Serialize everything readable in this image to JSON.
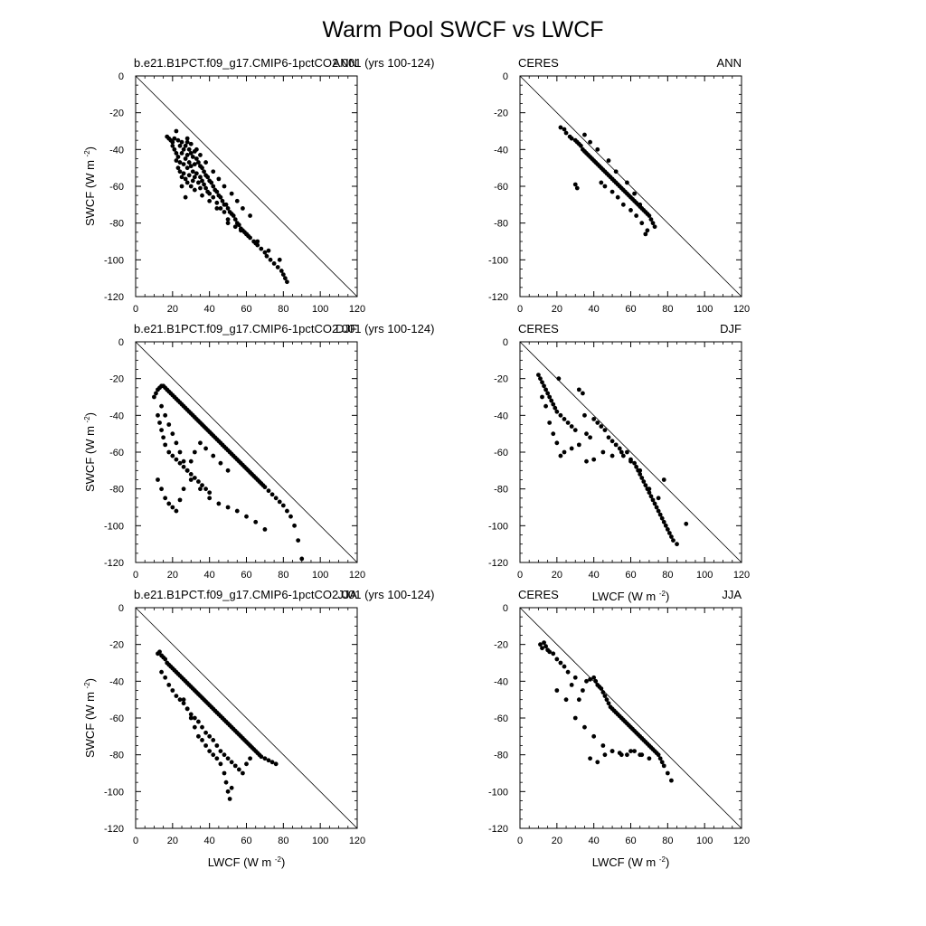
{
  "figure": {
    "title": "Warm Pool SWCF vs LWCF"
  },
  "chart_data": [
    {
      "type": "scatter",
      "left_label": "b.e21.B1PCT.f09_g17.CMIP6-1pctCO2.001 (yrs 100-124)",
      "right_label": "ANN",
      "xlabel": "",
      "ylabel": "SWCF (W m-2)",
      "xlim": [
        0,
        120
      ],
      "ylim": [
        -120,
        0
      ],
      "xticks": [
        0,
        20,
        40,
        60,
        80,
        100,
        120
      ],
      "yticks": [
        0,
        -20,
        -40,
        -60,
        -80,
        -100,
        -120
      ],
      "reference_line": [
        [
          0,
          0
        ],
        [
          120,
          -120
        ]
      ],
      "point_color": "#000000",
      "x": [
        17,
        18,
        19,
        20,
        20,
        21,
        21,
        22,
        22,
        22,
        23,
        23,
        23,
        24,
        24,
        24,
        25,
        25,
        25,
        26,
        26,
        26,
        27,
        27,
        27,
        28,
        28,
        28,
        28,
        29,
        29,
        29,
        30,
        30,
        30,
        31,
        31,
        31,
        32,
        32,
        32,
        33,
        33,
        34,
        34,
        35,
        35,
        35,
        36,
        36,
        37,
        37,
        38,
        38,
        39,
        39,
        40,
        40,
        41,
        42,
        42,
        43,
        44,
        44,
        45,
        46,
        46,
        47,
        48,
        49,
        50,
        50,
        51,
        52,
        53,
        54,
        55,
        56,
        57,
        58,
        59,
        60,
        61,
        62,
        64,
        65,
        66,
        68,
        70,
        71,
        73,
        75,
        77,
        79,
        80,
        81,
        82,
        28,
        30,
        33,
        35,
        38,
        42,
        45,
        48,
        52,
        55,
        58,
        62,
        25,
        27,
        32,
        36,
        40,
        44,
        48,
        50,
        54,
        57,
        60,
        66,
        72,
        78
      ],
      "y": [
        -33,
        -34,
        -35,
        -36,
        -38,
        -34,
        -40,
        -30,
        -42,
        -46,
        -35,
        -44,
        -50,
        -38,
        -47,
        -52,
        -36,
        -42,
        -55,
        -40,
        -48,
        -53,
        -38,
        -45,
        -56,
        -36,
        -43,
        -50,
        -58,
        -40,
        -47,
        -54,
        -42,
        -49,
        -60,
        -44,
        -52,
        -57,
        -41,
        -48,
        -55,
        -45,
        -53,
        -47,
        -58,
        -49,
        -55,
        -61,
        -50,
        -57,
        -52,
        -59,
        -54,
        -61,
        -55,
        -63,
        -57,
        -64,
        -58,
        -60,
        -66,
        -62,
        -63,
        -69,
        -65,
        -66,
        -72,
        -68,
        -70,
        -70,
        -72,
        -78,
        -74,
        -75,
        -76,
        -78,
        -80,
        -81,
        -83,
        -84,
        -85,
        -86,
        -87,
        -88,
        -90,
        -91,
        -92,
        -94,
        -96,
        -98,
        -100,
        -102,
        -104,
        -106,
        -108,
        -110,
        -112,
        -34,
        -37,
        -40,
        -43,
        -47,
        -52,
        -56,
        -60,
        -64,
        -68,
        -72,
        -76,
        -60,
        -66,
        -62,
        -65,
        -68,
        -72,
        -74,
        -80,
        -82,
        -84,
        -86,
        -90,
        -95,
        -100
      ]
    },
    {
      "type": "scatter",
      "left_label": "CERES",
      "right_label": "ANN",
      "xlabel": "",
      "ylabel": "",
      "xlim": [
        0,
        120
      ],
      "ylim": [
        -120,
        0
      ],
      "xticks": [
        0,
        20,
        40,
        60,
        80,
        100,
        120
      ],
      "yticks": [
        0,
        -20,
        -40,
        -60,
        -80,
        -100,
        -120
      ],
      "reference_line": [
        [
          0,
          0
        ],
        [
          120,
          -120
        ]
      ],
      "point_color": "#000000",
      "x": [
        22,
        24,
        25,
        27,
        28,
        30,
        31,
        32,
        33,
        34,
        35,
        36,
        37,
        38,
        39,
        40,
        41,
        42,
        43,
        44,
        45,
        46,
        47,
        48,
        49,
        50,
        51,
        52,
        53,
        54,
        55,
        56,
        57,
        58,
        59,
        60,
        61,
        62,
        63,
        64,
        65,
        66,
        67,
        68,
        69,
        70,
        71,
        72,
        73,
        30,
        31,
        44,
        46,
        50,
        53,
        56,
        60,
        63,
        66,
        69,
        35,
        38,
        42,
        48,
        52,
        58,
        62,
        65,
        68
      ],
      "y": [
        -28,
        -29,
        -31,
        -33,
        -34,
        -35,
        -36,
        -37,
        -38,
        -40,
        -41,
        -42,
        -43,
        -44,
        -45,
        -46,
        -47,
        -48,
        -49,
        -50,
        -51,
        -52,
        -53,
        -54,
        -55,
        -56,
        -57,
        -58,
        -59,
        -60,
        -61,
        -62,
        -63,
        -64,
        -65,
        -66,
        -67,
        -68,
        -69,
        -70,
        -71,
        -72,
        -73,
        -74,
        -75,
        -76,
        -78,
        -80,
        -82,
        -59,
        -61,
        -58,
        -60,
        -63,
        -66,
        -70,
        -73,
        -76,
        -80,
        -84,
        -32,
        -36,
        -40,
        -46,
        -52,
        -58,
        -64,
        -70,
        -86
      ]
    },
    {
      "type": "scatter",
      "left_label": "b.e21.B1PCT.f09_g17.CMIP6-1pctCO2.001 (yrs 100-124)",
      "right_label": "DJF",
      "xlabel": "",
      "ylabel": "SWCF (W m-2)",
      "xlim": [
        0,
        120
      ],
      "ylim": [
        -120,
        0
      ],
      "xticks": [
        0,
        20,
        40,
        60,
        80,
        100,
        120
      ],
      "yticks": [
        0,
        -20,
        -40,
        -60,
        -80,
        -100,
        -120
      ],
      "reference_line": [
        [
          0,
          0
        ],
        [
          120,
          -120
        ]
      ],
      "point_color": "#000000",
      "x": [
        10,
        11,
        12,
        13,
        14,
        15,
        16,
        17,
        18,
        19,
        20,
        21,
        22,
        23,
        24,
        25,
        26,
        27,
        28,
        29,
        30,
        31,
        32,
        33,
        34,
        35,
        36,
        37,
        38,
        39,
        40,
        41,
        42,
        43,
        44,
        45,
        46,
        47,
        48,
        49,
        50,
        51,
        52,
        53,
        54,
        55,
        56,
        57,
        58,
        59,
        60,
        61,
        62,
        63,
        64,
        65,
        66,
        67,
        68,
        69,
        70,
        72,
        74,
        76,
        78,
        80,
        82,
        84,
        86,
        88,
        90,
        12,
        13,
        14,
        15,
        16,
        18,
        20,
        22,
        24,
        26,
        28,
        30,
        32,
        34,
        36,
        38,
        40,
        12,
        14,
        16,
        18,
        20,
        22,
        24,
        26,
        28,
        30,
        32,
        35,
        38,
        42,
        46,
        50,
        14,
        16,
        18,
        20,
        22,
        24,
        26,
        28,
        30,
        35,
        40,
        45,
        50,
        55,
        60,
        65,
        70
      ],
      "y": [
        -30,
        -28,
        -26,
        -25,
        -24,
        -24,
        -25,
        -26,
        -27,
        -28,
        -29,
        -30,
        -31,
        -32,
        -33,
        -34,
        -35,
        -36,
        -37,
        -38,
        -39,
        -40,
        -41,
        -42,
        -43,
        -44,
        -45,
        -46,
        -47,
        -48,
        -49,
        -50,
        -51,
        -52,
        -53,
        -54,
        -55,
        -56,
        -57,
        -58,
        -59,
        -60,
        -61,
        -62,
        -63,
        -64,
        -65,
        -66,
        -67,
        -68,
        -69,
        -70,
        -71,
        -72,
        -73,
        -74,
        -75,
        -76,
        -77,
        -78,
        -79,
        -81,
        -83,
        -85,
        -87,
        -89,
        -92,
        -95,
        -100,
        -108,
        -118,
        -40,
        -44,
        -48,
        -52,
        -56,
        -60,
        -62,
        -64,
        -66,
        -68,
        -70,
        -72,
        -74,
        -76,
        -78,
        -80,
        -82,
        -75,
        -80,
        -85,
        -88,
        -90,
        -92,
        -86,
        -80,
        -70,
        -65,
        -60,
        -55,
        -58,
        -62,
        -66,
        -70,
        -35,
        -40,
        -45,
        -50,
        -55,
        -60,
        -65,
        -70,
        -75,
        -80,
        -85,
        -88,
        -90,
        -92,
        -95,
        -98,
        -102
      ]
    },
    {
      "type": "scatter",
      "left_label": "CERES",
      "right_label": "DJF",
      "xlabel": "LWCF (W m-2)",
      "ylabel": "",
      "xlim": [
        0,
        120
      ],
      "ylim": [
        -120,
        0
      ],
      "xticks": [
        0,
        20,
        40,
        60,
        80,
        100,
        120
      ],
      "yticks": [
        0,
        -20,
        -40,
        -60,
        -80,
        -100,
        -120
      ],
      "reference_line": [
        [
          0,
          0
        ],
        [
          120,
          -120
        ]
      ],
      "point_color": "#000000",
      "x": [
        10,
        11,
        12,
        13,
        14,
        15,
        16,
        17,
        18,
        19,
        20,
        21,
        22,
        24,
        26,
        28,
        30,
        32,
        34,
        35,
        36,
        38,
        40,
        42,
        44,
        46,
        48,
        50,
        52,
        54,
        56,
        58,
        60,
        62,
        63,
        64,
        65,
        66,
        67,
        68,
        69,
        70,
        71,
        72,
        73,
        74,
        75,
        76,
        77,
        78,
        79,
        80,
        81,
        82,
        83,
        85,
        90,
        12,
        14,
        16,
        18,
        20,
        22,
        24,
        28,
        32,
        36,
        40,
        45,
        50,
        55,
        60,
        65,
        70,
        75,
        78
      ],
      "y": [
        -18,
        -20,
        -22,
        -24,
        -26,
        -28,
        -30,
        -32,
        -34,
        -36,
        -38,
        -20,
        -40,
        -42,
        -44,
        -46,
        -48,
        -26,
        -28,
        -40,
        -50,
        -52,
        -42,
        -44,
        -46,
        -48,
        -52,
        -54,
        -56,
        -58,
        -62,
        -60,
        -64,
        -66,
        -68,
        -70,
        -72,
        -74,
        -76,
        -78,
        -80,
        -82,
        -84,
        -86,
        -88,
        -90,
        -92,
        -94,
        -96,
        -98,
        -100,
        -102,
        -104,
        -106,
        -108,
        -110,
        -99,
        -30,
        -35,
        -44,
        -50,
        -55,
        -62,
        -60,
        -58,
        -56,
        -65,
        -64,
        -60,
        -62,
        -60,
        -65,
        -70,
        -80,
        -85,
        -75
      ]
    },
    {
      "type": "scatter",
      "left_label": "b.e21.B1PCT.f09_g17.CMIP6-1pctCO2.001 (yrs 100-124)",
      "right_label": "JJA",
      "xlabel": "LWCF (W m-2)",
      "ylabel": "SWCF (W m-2)",
      "xlim": [
        0,
        120
      ],
      "ylim": [
        -120,
        0
      ],
      "xticks": [
        0,
        20,
        40,
        60,
        80,
        100,
        120
      ],
      "yticks": [
        0,
        -20,
        -40,
        -60,
        -80,
        -100,
        -120
      ],
      "reference_line": [
        [
          0,
          0
        ],
        [
          120,
          -120
        ]
      ],
      "point_color": "#000000",
      "x": [
        12,
        13,
        14,
        15,
        16,
        17,
        18,
        19,
        20,
        21,
        22,
        23,
        24,
        25,
        26,
        27,
        28,
        29,
        30,
        31,
        32,
        33,
        34,
        35,
        36,
        37,
        38,
        39,
        40,
        41,
        42,
        43,
        44,
        45,
        46,
        47,
        48,
        49,
        50,
        51,
        52,
        53,
        54,
        55,
        56,
        57,
        58,
        59,
        60,
        61,
        62,
        63,
        64,
        65,
        66,
        67,
        68,
        70,
        72,
        74,
        76,
        14,
        16,
        18,
        20,
        22,
        24,
        26,
        28,
        30,
        32,
        34,
        36,
        38,
        40,
        42,
        44,
        46,
        48,
        50,
        52,
        54,
        56,
        58,
        60,
        62,
        26,
        28,
        30,
        32,
        34,
        36,
        38,
        40,
        42,
        44,
        46,
        48,
        49,
        50,
        51,
        52
      ],
      "y": [
        -25,
        -24,
        -26,
        -27,
        -28,
        -30,
        -31,
        -32,
        -33,
        -34,
        -35,
        -36,
        -37,
        -38,
        -39,
        -40,
        -41,
        -42,
        -43,
        -44,
        -45,
        -46,
        -47,
        -48,
        -49,
        -50,
        -51,
        -52,
        -53,
        -54,
        -55,
        -56,
        -57,
        -58,
        -59,
        -60,
        -61,
        -62,
        -63,
        -64,
        -65,
        -66,
        -67,
        -68,
        -69,
        -70,
        -71,
        -72,
        -73,
        -74,
        -75,
        -76,
        -77,
        -78,
        -79,
        -80,
        -81,
        -82,
        -83,
        -84,
        -85,
        -35,
        -38,
        -42,
        -45,
        -48,
        -50,
        -52,
        -55,
        -58,
        -60,
        -62,
        -65,
        -68,
        -70,
        -72,
        -75,
        -78,
        -80,
        -82,
        -84,
        -86,
        -88,
        -90,
        -85,
        -82,
        -50,
        -55,
        -60,
        -65,
        -70,
        -72,
        -75,
        -78,
        -80,
        -82,
        -85,
        -90,
        -95,
        -100,
        -104,
        -98
      ]
    },
    {
      "type": "scatter",
      "left_label": "CERES",
      "right_label": "JJA",
      "xlabel": "LWCF (W m-2)",
      "ylabel": "",
      "xlim": [
        0,
        120
      ],
      "ylim": [
        -120,
        0
      ],
      "xticks": [
        0,
        20,
        40,
        60,
        80,
        100,
        120
      ],
      "yticks": [
        0,
        -20,
        -40,
        -60,
        -80,
        -100,
        -120
      ],
      "reference_line": [
        [
          0,
          0
        ],
        [
          120,
          -120
        ]
      ],
      "point_color": "#000000",
      "x": [
        11,
        12,
        13,
        14,
        15,
        16,
        18,
        20,
        22,
        24,
        26,
        28,
        30,
        32,
        34,
        36,
        38,
        40,
        41,
        42,
        43,
        44,
        45,
        46,
        47,
        48,
        49,
        50,
        51,
        52,
        53,
        54,
        55,
        56,
        57,
        58,
        59,
        60,
        61,
        62,
        63,
        64,
        65,
        66,
        67,
        68,
        69,
        70,
        71,
        72,
        73,
        74,
        75,
        76,
        77,
        78,
        80,
        82,
        20,
        25,
        30,
        35,
        40,
        45,
        50,
        55,
        60,
        65,
        70,
        38,
        42,
        46,
        50,
        54,
        58,
        62,
        66
      ],
      "y": [
        -20,
        -22,
        -19,
        -21,
        -23,
        -24,
        -25,
        -28,
        -30,
        -32,
        -35,
        -42,
        -38,
        -50,
        -45,
        -40,
        -39,
        -38,
        -40,
        -42,
        -43,
        -44,
        -46,
        -48,
        -50,
        -52,
        -54,
        -55,
        -56,
        -57,
        -58,
        -59,
        -60,
        -61,
        -62,
        -63,
        -64,
        -65,
        -66,
        -67,
        -68,
        -69,
        -70,
        -71,
        -72,
        -73,
        -74,
        -75,
        -76,
        -77,
        -78,
        -79,
        -80,
        -82,
        -84,
        -86,
        -90,
        -94,
        -45,
        -50,
        -60,
        -65,
        -70,
        -75,
        -78,
        -80,
        -78,
        -80,
        -82,
        -82,
        -84,
        -80,
        -78,
        -79,
        -80,
        -78,
        -80
      ]
    }
  ]
}
